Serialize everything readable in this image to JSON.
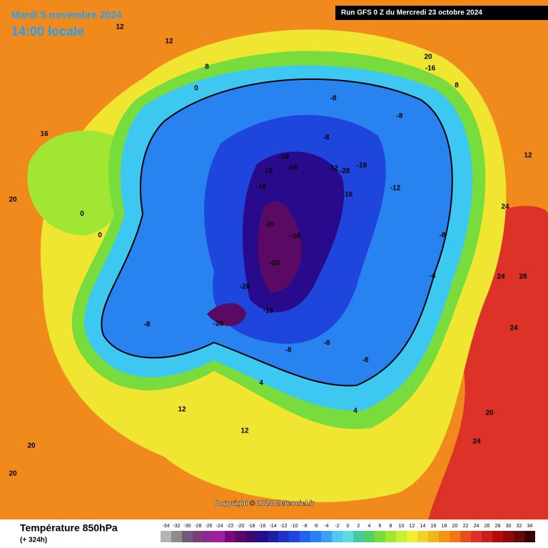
{
  "header": {
    "date": "Mardi 5 novembre 2024",
    "time": "14:00 locale",
    "run": "Run GFS 0 Z du Mercredi 23 octobre 2024"
  },
  "footer": {
    "field": "Température 850hPa",
    "lead": "(+ 324h)",
    "copyright": "Copyright © 2024 Meteociel.fr"
  },
  "legend": {
    "ticks": [
      -34,
      -32,
      -30,
      -28,
      -26,
      -24,
      -22,
      -20,
      -18,
      -16,
      -14,
      -12,
      -10,
      -8,
      -6,
      -4,
      -2,
      0,
      2,
      4,
      6,
      8,
      10,
      12,
      14,
      16,
      18,
      20,
      22,
      24,
      26,
      28,
      30,
      32,
      34
    ],
    "colors": [
      "#b4b4b4",
      "#8c8c8c",
      "#6e5a7a",
      "#7a3c7a",
      "#8c2890",
      "#a01ea0",
      "#7a0a7a",
      "#5a0a64",
      "#3c0a6e",
      "#280a8c",
      "#1e1ea0",
      "#1e32c8",
      "#1e46dc",
      "#1e64f0",
      "#2882f0",
      "#3ca0f0",
      "#50c8f0",
      "#5adcdc",
      "#46c8a0",
      "#50d264",
      "#78dc3c",
      "#a0e632",
      "#c8f032",
      "#f0f032",
      "#f0d228",
      "#f0b41e",
      "#f09614",
      "#f07814",
      "#e6501e",
      "#dc3228",
      "#c81e1e",
      "#b40a0a",
      "#8c0a0a",
      "#640a0a",
      "#3c0000"
    ]
  },
  "map": {
    "labels": [
      12,
      12,
      8,
      0,
      20,
      -16,
      -8,
      -8,
      -8,
      -16,
      -16,
      -16,
      -12,
      -20,
      -16,
      -16,
      -16,
      -20,
      -16,
      -20,
      -20,
      -16,
      -20,
      -8,
      -8,
      -8,
      -12,
      -8,
      -4,
      -8,
      0,
      0,
      16,
      20,
      24,
      24,
      28,
      24,
      20,
      24,
      12,
      20,
      20,
      12,
      4,
      4,
      8,
      12
    ]
  }
}
